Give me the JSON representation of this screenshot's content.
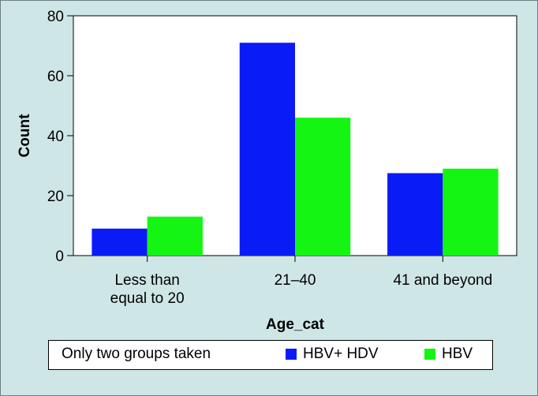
{
  "chart_data": {
    "type": "bar",
    "title": "",
    "xlabel": "Age_cat",
    "ylabel": "Count",
    "categories": [
      [
        "Less than",
        "equal to 20"
      ],
      [
        "21–40"
      ],
      [
        "41 and beyond"
      ]
    ],
    "series": [
      {
        "name": "HBV+ HDV",
        "values": [
          9,
          71,
          27.5
        ],
        "color": "#0a1cf5"
      },
      {
        "name": "HBV",
        "values": [
          13,
          46,
          29
        ],
        "color": "#14f514"
      }
    ],
    "ylim": [
      0,
      80
    ],
    "yticks": [
      0,
      20,
      40,
      60,
      80
    ],
    "grid": false,
    "legend_placement": "bottom"
  },
  "legend": {
    "note": "Only two groups taken"
  },
  "colors": {
    "panel_background": "#cfe6e6",
    "plot_background": "#ffffff"
  }
}
